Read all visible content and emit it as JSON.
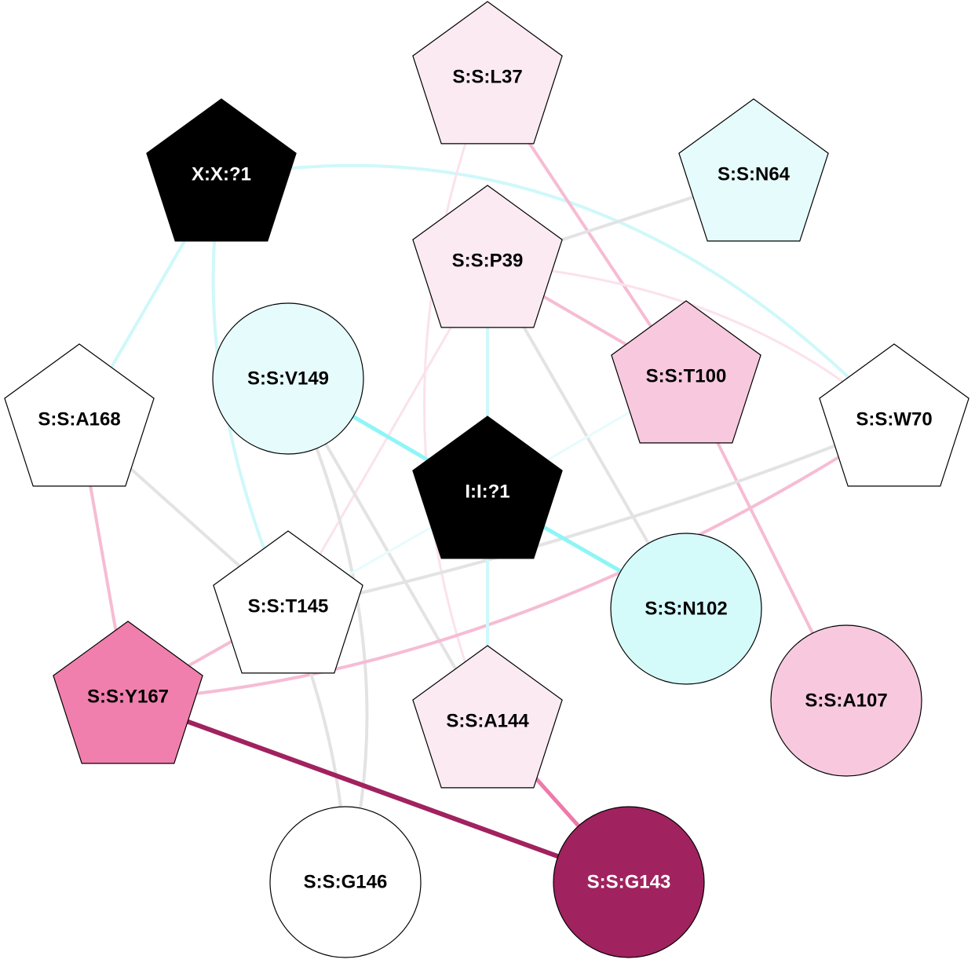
{
  "graph": {
    "nodes": [
      {
        "id": "S:S:L37",
        "label": "S:S:L37",
        "shape": "pentagon",
        "fill": "#fbeaf2",
        "text_color": "#000000"
      },
      {
        "id": "X:X:?1",
        "label": "X:X:?1",
        "shape": "pentagon",
        "fill": "#000000",
        "text_color": "#ffffff"
      },
      {
        "id": "S:S:N64",
        "label": "S:S:N64",
        "shape": "pentagon",
        "fill": "#e6fcfc",
        "text_color": "#000000"
      },
      {
        "id": "S:S:P39",
        "label": "S:S:P39",
        "shape": "pentagon",
        "fill": "#fbeaf2",
        "text_color": "#000000"
      },
      {
        "id": "S:S:V149",
        "label": "S:S:V149",
        "shape": "circle",
        "fill": "#e6fcfc",
        "text_color": "#000000"
      },
      {
        "id": "S:S:T100",
        "label": "S:S:T100",
        "shape": "pentagon",
        "fill": "#f8c9de",
        "text_color": "#000000"
      },
      {
        "id": "S:S:A168",
        "label": "S:S:A168",
        "shape": "pentagon",
        "fill": "#ffffff",
        "text_color": "#000000"
      },
      {
        "id": "S:S:W70",
        "label": "S:S:W70",
        "shape": "pentagon",
        "fill": "#ffffff",
        "text_color": "#000000"
      },
      {
        "id": "I:I:?1",
        "label": "I:I:?1",
        "shape": "pentagon",
        "fill": "#000000",
        "text_color": "#ffffff"
      },
      {
        "id": "S:S:T145",
        "label": "S:S:T145",
        "shape": "pentagon",
        "fill": "#ffffff",
        "text_color": "#000000"
      },
      {
        "id": "S:S:N102",
        "label": "S:S:N102",
        "shape": "circle",
        "fill": "#d4fafa",
        "text_color": "#000000"
      },
      {
        "id": "S:S:Y167",
        "label": "S:S:Y167",
        "shape": "pentagon",
        "fill": "#f07fad",
        "text_color": "#000000"
      },
      {
        "id": "S:S:A144",
        "label": "S:S:A144",
        "shape": "pentagon",
        "fill": "#fbeaf2",
        "text_color": "#000000"
      },
      {
        "id": "S:S:A107",
        "label": "S:S:A107",
        "shape": "circle",
        "fill": "#f8c9de",
        "text_color": "#000000"
      },
      {
        "id": "S:S:G146",
        "label": "S:S:G146",
        "shape": "circle",
        "fill": "#ffffff",
        "text_color": "#000000"
      },
      {
        "id": "S:S:G143",
        "label": "S:S:G143",
        "shape": "circle",
        "fill": "#a0225e",
        "text_color": "#ffffff"
      }
    ],
    "edges": [
      {
        "source": "X:X:?1",
        "target": "S:S:W70",
        "color": "#cff8fa",
        "weight": 4
      },
      {
        "source": "X:X:?1",
        "target": "S:S:A168",
        "color": "#cff8fa",
        "weight": 4
      },
      {
        "source": "X:X:?1",
        "target": "S:S:T145",
        "color": "#cff8fa",
        "weight": 4
      },
      {
        "source": "S:S:L37",
        "target": "S:S:T100",
        "color": "#f6bcd4",
        "weight": 4
      },
      {
        "source": "S:S:L37",
        "target": "S:S:A144",
        "color": "#fbe2ec",
        "weight": 3
      },
      {
        "source": "S:S:N64",
        "target": "S:S:P39",
        "color": "#e3e3e3",
        "weight": 4
      },
      {
        "source": "S:S:P39",
        "target": "S:S:T100",
        "color": "#f6bcd4",
        "weight": 4
      },
      {
        "source": "S:S:P39",
        "target": "S:S:W70",
        "color": "#fbe2ec",
        "weight": 3
      },
      {
        "source": "S:S:P39",
        "target": "I:I:?1",
        "color": "#cff8fa",
        "weight": 4
      },
      {
        "source": "S:S:P39",
        "target": "S:S:N102",
        "color": "#e3e3e3",
        "weight": 4
      },
      {
        "source": "S:S:P39",
        "target": "S:S:T145",
        "color": "#fbe2ec",
        "weight": 3
      },
      {
        "source": "S:S:V149",
        "target": "I:I:?1",
        "color": "#8ef5f7",
        "weight": 5
      },
      {
        "source": "S:S:V149",
        "target": "S:S:A144",
        "color": "#e3e3e3",
        "weight": 4
      },
      {
        "source": "S:S:V149",
        "target": "S:S:G146",
        "color": "#e3e3e3",
        "weight": 4
      },
      {
        "source": "S:S:T100",
        "target": "I:I:?1",
        "color": "#e6fcfc",
        "weight": 3
      },
      {
        "source": "S:S:T100",
        "target": "S:S:A107",
        "color": "#f6bcd4",
        "weight": 4
      },
      {
        "source": "S:S:A168",
        "target": "S:S:T145",
        "color": "#e3e3e3",
        "weight": 4
      },
      {
        "source": "S:S:A168",
        "target": "S:S:Y167",
        "color": "#f6bcd4",
        "weight": 4
      },
      {
        "source": "S:S:W70",
        "target": "S:S:T145",
        "color": "#e3e3e3",
        "weight": 4
      },
      {
        "source": "S:S:W70",
        "target": "S:S:Y167",
        "color": "#f6bcd4",
        "weight": 4
      },
      {
        "source": "I:I:?1",
        "target": "S:S:N102",
        "color": "#8ef5f7",
        "weight": 5
      },
      {
        "source": "I:I:?1",
        "target": "S:S:T145",
        "color": "#e6fcfc",
        "weight": 3
      },
      {
        "source": "I:I:?1",
        "target": "S:S:A144",
        "color": "#cff8fa",
        "weight": 4
      },
      {
        "source": "S:S:T145",
        "target": "S:S:Y167",
        "color": "#f6bcd4",
        "weight": 4
      },
      {
        "source": "S:S:T145",
        "target": "S:S:G146",
        "color": "#e3e3e3",
        "weight": 4
      },
      {
        "source": "S:S:Y167",
        "target": "S:S:G143",
        "color": "#a0225e",
        "weight": 6
      },
      {
        "source": "S:S:A144",
        "target": "S:S:G143",
        "color": "#ee7aa9",
        "weight": 5
      }
    ]
  }
}
